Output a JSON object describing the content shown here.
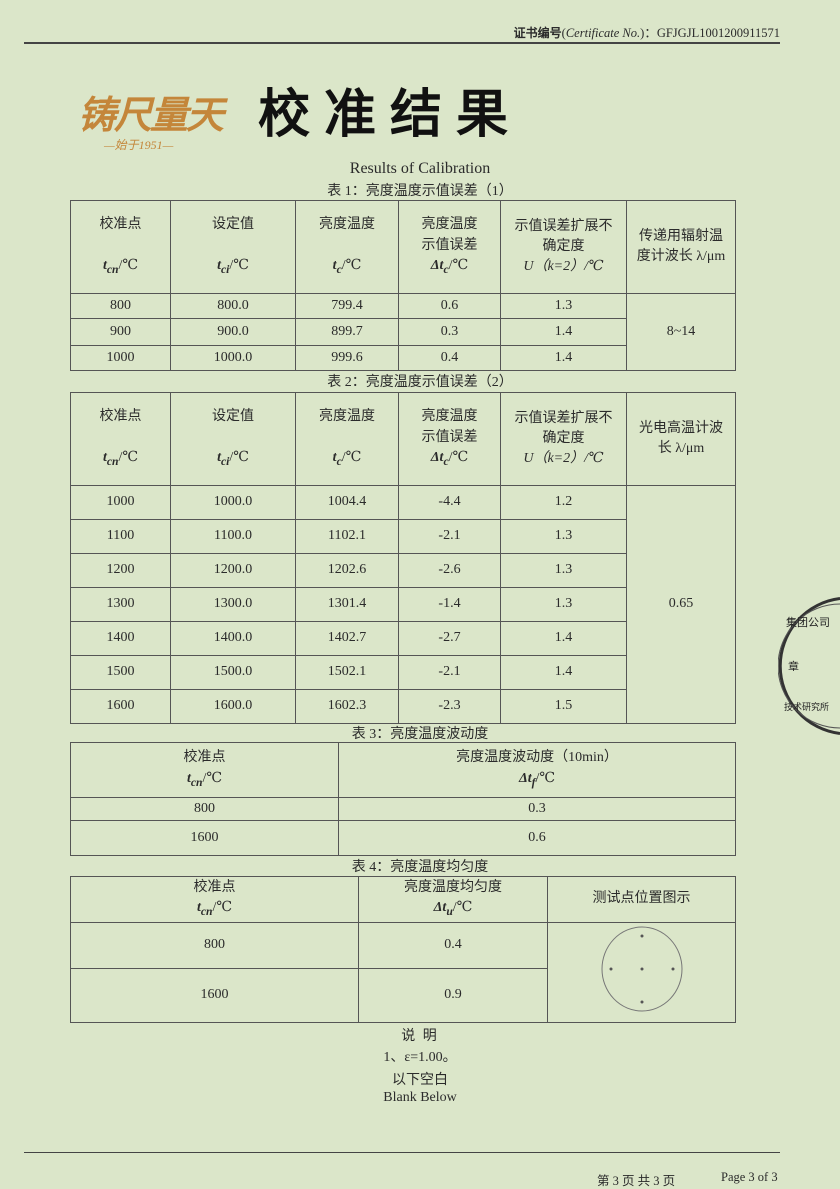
{
  "header": {
    "cert_label_cn": "证书编号",
    "cert_label_en": "Certificate No.",
    "cert_no": "GFJGJL1001200911571",
    "logo_text": "铸尺量天",
    "logo_since": "—始于1951—",
    "title": "校准结果",
    "subtitle": "Results of Calibration"
  },
  "table1": {
    "caption": "表 1：亮度温度示值误差（1）",
    "headers": [
      {
        "l1": "校准点",
        "l2": "",
        "sym": "t",
        "sub": "cn",
        "unit": "/℃"
      },
      {
        "l1": "设定值",
        "l2": "",
        "sym": "t",
        "sub": "ci",
        "unit": "/℃"
      },
      {
        "l1": "亮度温度",
        "l2": "",
        "sym": "t",
        "sub": "c",
        "unit": "/℃"
      },
      {
        "l1": "亮度温度",
        "l2": "示值误差",
        "sym": "Δt",
        "sub": "c",
        "unit": "/℃"
      },
      {
        "l1": "示值误差扩展不",
        "l2": "确定度",
        "sym": "",
        "sub": "",
        "unit": "U（k=2）/℃"
      },
      {
        "l1": "传递用辐射温",
        "l2": "度计波长 λ/μm",
        "sym": "",
        "sub": "",
        "unit": ""
      }
    ],
    "rows": [
      [
        "800",
        "800.0",
        "799.4",
        "0.6",
        "1.3"
      ],
      [
        "900",
        "900.0",
        "899.7",
        "0.3",
        "1.4"
      ],
      [
        "1000",
        "1000.0",
        "999.6",
        "0.4",
        "1.4"
      ]
    ],
    "wavelength": "8~14"
  },
  "table2": {
    "caption": "表 2：亮度温度示值误差（2）",
    "last_header_l1": "光电高温计波",
    "last_header_l2": "长 λ/μm",
    "rows": [
      [
        "1000",
        "1000.0",
        "1004.4",
        "-4.4",
        "1.2"
      ],
      [
        "1100",
        "1100.0",
        "1102.1",
        "-2.1",
        "1.3"
      ],
      [
        "1200",
        "1200.0",
        "1202.6",
        "-2.6",
        "1.3"
      ],
      [
        "1300",
        "1300.0",
        "1301.4",
        "-1.4",
        "1.3"
      ],
      [
        "1400",
        "1400.0",
        "1402.7",
        "-2.7",
        "1.4"
      ],
      [
        "1500",
        "1500.0",
        "1502.1",
        "-2.1",
        "1.4"
      ],
      [
        "1600",
        "1600.0",
        "1602.3",
        "-2.3",
        "1.5"
      ]
    ],
    "wavelength": "0.65"
  },
  "table3": {
    "caption": "表 3：亮度温度波动度",
    "h1": "校准点",
    "h1_sub": "cn",
    "h2": "亮度温度波动度（10min）",
    "h2_sym": "Δt",
    "h2_sub": "f",
    "unit": "/℃",
    "rows": [
      [
        "800",
        "0.3"
      ],
      [
        "1600",
        "0.6"
      ]
    ]
  },
  "table4": {
    "caption": "表 4：亮度温度均匀度",
    "h1": "校准点",
    "h1_sub": "cn",
    "h2": "亮度温度均匀度",
    "h2_sym": "Δt",
    "h2_sub": "u",
    "h3": "测试点位置图示",
    "unit": "/℃",
    "rows": [
      [
        "800",
        "0.4"
      ],
      [
        "1600",
        "0.9"
      ]
    ]
  },
  "notes": {
    "heading": "说 明",
    "item1": "1、ε=1.00。",
    "blank_cn": "以下空白",
    "blank_en": "Blank Below"
  },
  "footer": {
    "page_cn": "第 3 页 共 3 页",
    "page_en": "Page 3 of 3"
  },
  "stamp_text": "集团公司 章 技术研究所"
}
